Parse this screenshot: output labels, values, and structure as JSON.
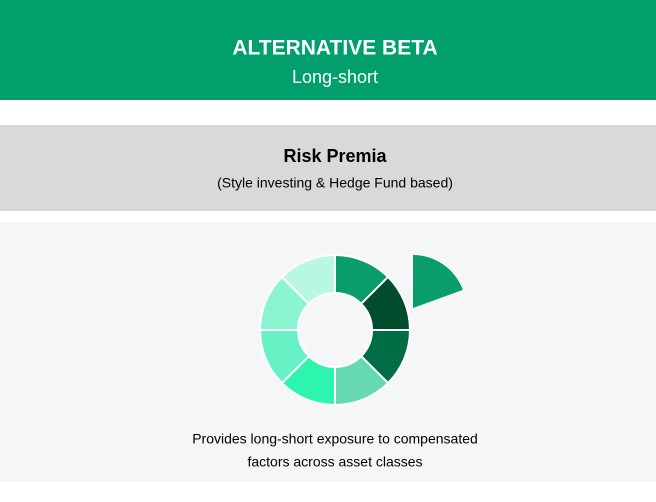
{
  "header": {
    "title": "ALTERNATIVE BETA",
    "subtitle": "Long-short"
  },
  "section": {
    "title": "Risk Premia",
    "subtitle": "(Style investing & Hedge Fund based)"
  },
  "description": {
    "lines": [
      "Provides long-short exposure to compensated",
      "factors across asset classes"
    ]
  }
}
